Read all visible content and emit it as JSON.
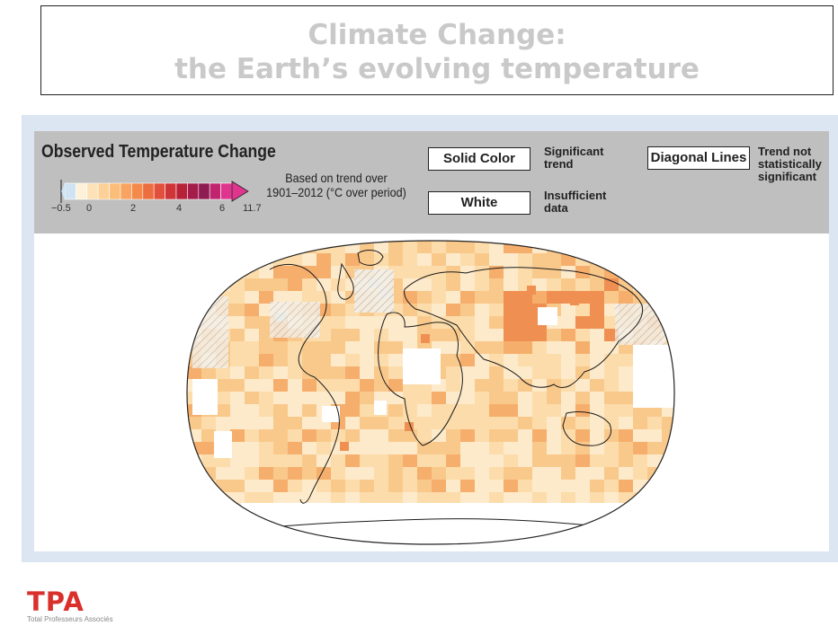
{
  "title": {
    "line1": "Climate Change:",
    "line2": "the Earth’s evolving temperature"
  },
  "legend": {
    "heading": "Observed Temperature Change",
    "basis_line1": "Based on trend over",
    "basis_line2": "1901–2012 (°C over period)",
    "scale_ticks": [
      "−0.5",
      "0",
      "2",
      "4",
      "6",
      "11.7"
    ],
    "scale_colors": [
      "#ffffff",
      "#cfe3f2",
      "#fdf1d9",
      "#fde2b8",
      "#fcd096",
      "#fbbd78",
      "#f8a35f",
      "#f38a4c",
      "#ec6d3f",
      "#e0503a",
      "#cf3436",
      "#b82238",
      "#a41d4a",
      "#8e1c52",
      "#c0246e",
      "#e0358f"
    ],
    "key_solid_label": "Solid Color",
    "key_solid_desc": "Significant trend",
    "key_white_label": "White",
    "key_white_desc": "Insufficient data",
    "key_diag_label": "Diagonal Lines",
    "key_diag_desc": "Trend not statistically significant"
  },
  "map": {
    "type": "world temperature change map",
    "colors": {
      "pale": "#fdeacb",
      "light": "#fcdcaa",
      "mid": "#f9c98c",
      "warm": "#f6ae6c",
      "hot": "#ef8f52",
      "cool": "#cfe3f2",
      "coast": "#1a1a1a"
    }
  },
  "logo": {
    "name": "TPA",
    "tagline": "Total Professeurs Associés"
  }
}
